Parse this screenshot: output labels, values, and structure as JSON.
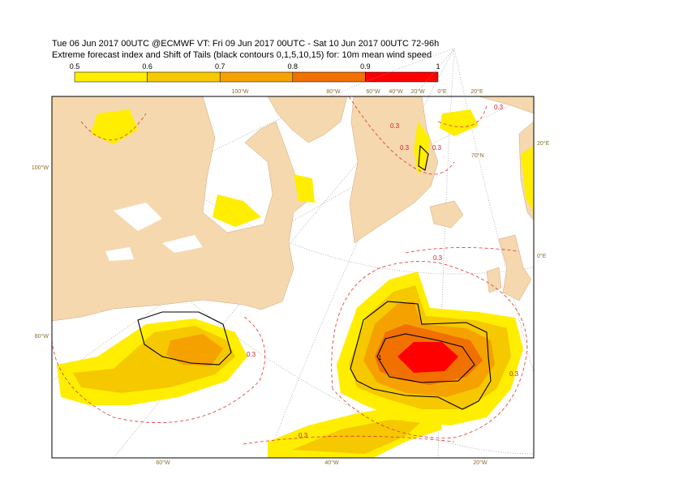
{
  "header": {
    "line1": "Tue 06 Jun 2017 00UTC @ECMWF VT: Fri 09 Jun 2017 00UTC - Sat 10 Jun 2017 00UTC  72-96h",
    "line2": "Extreme forecast index and Shift of Tails (black contours 0,1,5,10,15) for: 10m mean wind speed"
  },
  "colorbar": {
    "ticks": [
      0.5,
      0.6,
      0.7,
      0.8,
      0.9,
      1
    ],
    "colors": [
      "#ffee00",
      "#f5c800",
      "#f5a200",
      "#f07000",
      "#ff0000"
    ]
  },
  "map": {
    "top_labels": [
      "100°W",
      "80°W",
      "60°W",
      "40°W",
      "20°W",
      "0°E",
      "20°E"
    ],
    "left_labels": [
      "100°W",
      "80°W"
    ],
    "bottom_labels": [
      "60°W",
      "40°W",
      "20°W"
    ],
    "right_labels": [
      "20°E",
      "0°E"
    ],
    "inner_labels": [
      "70°N"
    ],
    "contour_labels": [
      "0.3",
      "0.3",
      "0.3",
      "0.3",
      "0.3",
      "0.3",
      "0.3",
      "0.3",
      "1"
    ]
  }
}
